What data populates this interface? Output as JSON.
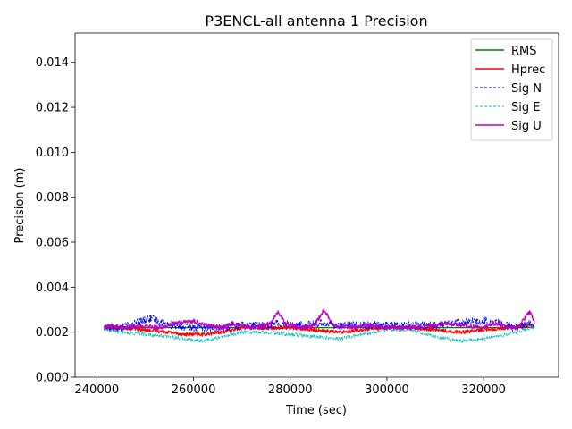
{
  "chart_data": {
    "type": "line",
    "title": "P3ENCL-all antenna 1 Precision",
    "xlabel": "Time (sec)",
    "ylabel": "Precision (m)",
    "xlim": [
      235500,
      335500
    ],
    "ylim": [
      0,
      0.0153
    ],
    "x_ticks": [
      240000,
      260000,
      280000,
      300000,
      320000
    ],
    "x_tick_labels": [
      "240000",
      "260000",
      "280000",
      "300000",
      "320000"
    ],
    "y_ticks": [
      0.0,
      0.002,
      0.004,
      0.006,
      0.008,
      0.01,
      0.012,
      0.014
    ],
    "y_tick_labels": [
      "0.000",
      "0.002",
      "0.004",
      "0.006",
      "0.008",
      "0.010",
      "0.012",
      "0.014"
    ],
    "legend_position": "top-right",
    "series": [
      {
        "name": "RMS",
        "color": "#008000",
        "style": "solid",
        "x": [
          241500,
          330500
        ],
        "values": [
          0.0022,
          0.0022
        ]
      },
      {
        "name": "Hprec",
        "color": "#ff0000",
        "style": "solid",
        "noise": 8e-05,
        "x": [
          241500,
          245000,
          250000,
          255000,
          258000,
          262000,
          266000,
          270000,
          275000,
          280000,
          285000,
          290000,
          295000,
          300000,
          305000,
          310000,
          315000,
          320000,
          325000,
          330000,
          330500
        ],
        "values": [
          0.0022,
          0.0022,
          0.0021,
          0.002,
          0.0019,
          0.0019,
          0.002,
          0.0022,
          0.0022,
          0.0022,
          0.0021,
          0.002,
          0.0021,
          0.0022,
          0.0022,
          0.0021,
          0.002,
          0.0021,
          0.0022,
          0.0023,
          0.0023
        ]
      },
      {
        "name": "Sig N",
        "color": "#0000ff",
        "style": "dashed",
        "noise": 0.00018,
        "x": [
          241500,
          245000,
          248000,
          251000,
          254000,
          258000,
          262000,
          266000,
          270000,
          275000,
          278000,
          282000,
          287000,
          290000,
          295000,
          300000,
          305000,
          310000,
          315000,
          320000,
          323000,
          326000,
          330000,
          330500
        ],
        "values": [
          0.0022,
          0.0022,
          0.0024,
          0.0026,
          0.0024,
          0.0022,
          0.0022,
          0.0022,
          0.0023,
          0.0023,
          0.0024,
          0.0023,
          0.0024,
          0.0023,
          0.0023,
          0.0023,
          0.0023,
          0.0023,
          0.0024,
          0.0025,
          0.0024,
          0.0022,
          0.0024,
          0.0024
        ]
      },
      {
        "name": "Sig E",
        "color": "#00bfbf",
        "style": "dashed",
        "noise": 8e-05,
        "x": [
          241500,
          245000,
          250000,
          255000,
          258000,
          262000,
          266000,
          270000,
          275000,
          280000,
          285000,
          290000,
          295000,
          300000,
          305000,
          310000,
          315000,
          320000,
          325000,
          330000,
          330500
        ],
        "values": [
          0.0021,
          0.002,
          0.0019,
          0.0018,
          0.0017,
          0.0016,
          0.0018,
          0.002,
          0.002,
          0.0019,
          0.0018,
          0.0017,
          0.0019,
          0.0021,
          0.0021,
          0.0018,
          0.0016,
          0.0017,
          0.0019,
          0.0022,
          0.0022
        ]
      },
      {
        "name": "Sig U",
        "color": "#bf00bf",
        "style": "solid",
        "noise": 9e-05,
        "x": [
          241500,
          243000,
          246000,
          250000,
          253000,
          256000,
          260000,
          263000,
          266000,
          268000,
          272000,
          276000,
          277500,
          279000,
          282000,
          285000,
          287000,
          289000,
          292000,
          296000,
          300000,
          305000,
          310000,
          312000,
          316000,
          320000,
          322000,
          324000,
          327000,
          329500,
          330500
        ],
        "values": [
          0.0022,
          0.0023,
          0.0022,
          0.0023,
          0.0022,
          0.0024,
          0.0025,
          0.0023,
          0.0022,
          0.0024,
          0.0022,
          0.0024,
          0.0029,
          0.0024,
          0.0022,
          0.0023,
          0.003,
          0.0023,
          0.0022,
          0.0023,
          0.0022,
          0.0022,
          0.0023,
          0.0024,
          0.0023,
          0.0022,
          0.0024,
          0.0023,
          0.0022,
          0.0029,
          0.0025
        ]
      }
    ]
  }
}
